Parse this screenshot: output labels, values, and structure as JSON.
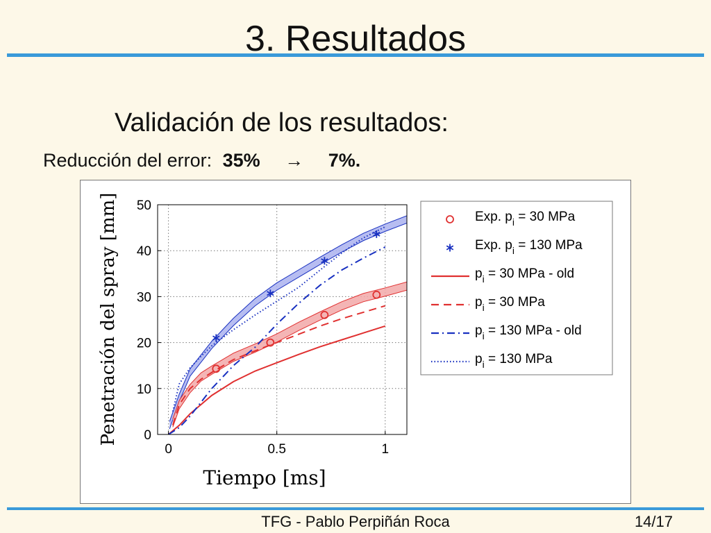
{
  "slide": {
    "title": "3. Resultados",
    "subtitle": "Validación de los resultados:",
    "error_label": "Reducción del error:",
    "error_before": "35%",
    "error_arrow": "→",
    "error_after": "7%."
  },
  "footer": {
    "text": "TFG - Pablo Perpiñán Roca",
    "page": "14/17"
  },
  "colors": {
    "accent_rule": "#3a9ad9",
    "red": "#e03030",
    "blue": "#1830c0",
    "red_band": "#f2a8a8",
    "blue_band": "#aab2ee"
  },
  "chart_data": {
    "type": "line",
    "xlabel": "Tiempo [ms]",
    "ylabel": "Penetración del spray [mm]",
    "xlim": [
      -0.05,
      1.1
    ],
    "ylim": [
      0,
      50
    ],
    "xticks": [
      0,
      0.5,
      1
    ],
    "xtick_labels": [
      "0",
      "0.5",
      "1"
    ],
    "yticks": [
      0,
      10,
      20,
      30,
      40,
      50
    ],
    "ytick_labels": [
      "0",
      "10",
      "20",
      "30",
      "40",
      "50"
    ],
    "grid": true,
    "legend_position": "right, outside plot area",
    "series": [
      {
        "name_main": "Exp. p",
        "name_sub": "i",
        "name_rest": " = 30 MPa",
        "kind": "scatter",
        "marker": "circle",
        "color": "#e03030",
        "x": [
          0.22,
          0.47,
          0.72,
          0.96
        ],
        "y": [
          14.3,
          20.0,
          26.0,
          30.4
        ]
      },
      {
        "name_main": "Exp. p",
        "name_sub": "i",
        "name_rest": " = 130 MPa",
        "kind": "scatter",
        "marker": "star",
        "color": "#1830c0",
        "x": [
          0.22,
          0.47,
          0.72,
          0.96
        ],
        "y": [
          21.0,
          30.7,
          37.8,
          43.6
        ]
      },
      {
        "name_main": "p",
        "name_sub": "i",
        "name_rest": " = 30 MPa - old",
        "kind": "line",
        "dash": "solid",
        "color": "#e03030",
        "x": [
          0,
          0.05,
          0.1,
          0.2,
          0.3,
          0.4,
          0.5,
          0.6,
          0.7,
          0.8,
          0.9,
          1.0
        ],
        "y": [
          0,
          2.0,
          4.5,
          8.5,
          11.5,
          13.8,
          15.6,
          17.4,
          19.1,
          20.6,
          22.1,
          23.6
        ]
      },
      {
        "name_main": "p",
        "name_sub": "i",
        "name_rest": " = 30 MPa",
        "kind": "line",
        "dash": "dashed",
        "color": "#e03030",
        "x": [
          0.02,
          0.05,
          0.1,
          0.15,
          0.2,
          0.3,
          0.4,
          0.5,
          0.6,
          0.7,
          0.8,
          0.9,
          1.0
        ],
        "y": [
          2.0,
          6.5,
          10.0,
          12.0,
          13.5,
          16.3,
          18.2,
          20.0,
          21.8,
          23.6,
          25.2,
          26.6,
          28.0
        ]
      },
      {
        "name_main": "p",
        "name_sub": "i",
        "name_rest": " = 130 MPa - old",
        "kind": "line",
        "dash": "dashdot",
        "color": "#1830c0",
        "x": [
          0,
          0.05,
          0.1,
          0.2,
          0.3,
          0.4,
          0.5,
          0.6,
          0.7,
          0.8,
          0.9,
          1.0
        ],
        "y": [
          0,
          1.5,
          4.0,
          10.0,
          15.0,
          19.0,
          24.0,
          28.5,
          32.5,
          35.8,
          38.4,
          40.8
        ]
      },
      {
        "name_main": "p",
        "name_sub": "i",
        "name_rest": " = 130 MPa",
        "kind": "line",
        "dash": "dotted",
        "color": "#1830c0",
        "x": [
          0.02,
          0.05,
          0.1,
          0.15,
          0.2,
          0.3,
          0.4,
          0.5,
          0.6,
          0.7,
          0.8,
          0.9,
          1.0
        ],
        "y": [
          5.0,
          11.0,
          14.5,
          17.0,
          19.3,
          22.8,
          26.0,
          29.0,
          32.0,
          35.8,
          39.5,
          42.8,
          45.2
        ]
      }
    ],
    "bands": [
      {
        "color": "#1830c0",
        "x": [
          0.005,
          0.05,
          0.1,
          0.15,
          0.2,
          0.3,
          0.4,
          0.5,
          0.6,
          0.7,
          0.8,
          0.9,
          1.0,
          1.1
        ],
        "y": [
          2.0,
          8.0,
          13.5,
          16.5,
          19.5,
          24.5,
          28.8,
          32.2,
          35.0,
          37.8,
          40.5,
          43.0,
          45.0,
          46.8
        ],
        "half_width": 0.8
      },
      {
        "color": "#e03030",
        "x": [
          0.02,
          0.05,
          0.1,
          0.15,
          0.2,
          0.3,
          0.4,
          0.5,
          0.6,
          0.7,
          0.8,
          0.9,
          1.0,
          1.1
        ],
        "y": [
          2.5,
          6.5,
          10.0,
          12.5,
          14.0,
          16.8,
          18.8,
          21.0,
          23.5,
          25.8,
          28.0,
          29.8,
          31.0,
          32.3
        ],
        "half_width": 0.9
      }
    ]
  }
}
